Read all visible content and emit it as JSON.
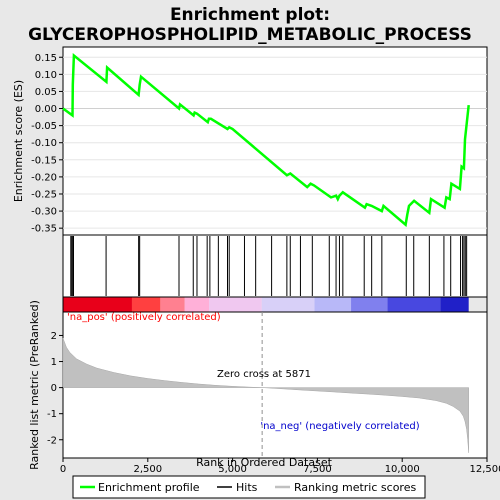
{
  "chart_data": {
    "type": "line",
    "title_line1": "Enrichment plot:",
    "title_line2": "GLYCEROPHOSPHOLIPID_METABOLIC_PROCESS",
    "es_panel": {
      "ylabel": "Enrichment score (ES)",
      "ylim": [
        -0.37,
        0.18
      ],
      "yticks": [
        0.15,
        0.1,
        0.05,
        0.0,
        -0.05,
        -0.1,
        -0.15,
        -0.2,
        -0.25,
        -0.3,
        -0.35
      ],
      "ytick_labels": [
        "0.15",
        "0.10",
        "0.05",
        "0.00",
        "-0.05",
        "-0.10",
        "-0.15",
        "-0.20",
        "-0.25",
        "-0.30",
        "-0.35"
      ],
      "series_name": "Enrichment profile",
      "color": "#00ff00",
      "x": [
        0,
        280,
        290,
        320,
        1280,
        1300,
        2230,
        2260,
        2300,
        3420,
        3450,
        3850,
        3880,
        3950,
        4270,
        4300,
        4360,
        4850,
        4900,
        5000,
        6600,
        6700,
        7200,
        7300,
        7400,
        7900,
        8050,
        8100,
        8150,
        8250,
        8900,
        8950,
        9100,
        9400,
        9450,
        10100,
        10150,
        10200,
        10350,
        10800,
        10850,
        11250,
        11300,
        11400,
        11450,
        11700,
        11750,
        11820,
        11850,
        11960
      ],
      "y": [
        0.0,
        -0.02,
        0.07,
        0.155,
        0.078,
        0.12,
        0.04,
        0.07,
        0.093,
        0.0,
        0.012,
        -0.02,
        -0.012,
        -0.015,
        -0.04,
        -0.03,
        -0.03,
        -0.06,
        -0.055,
        -0.06,
        -0.195,
        -0.19,
        -0.23,
        -0.22,
        -0.225,
        -0.26,
        -0.255,
        -0.265,
        -0.255,
        -0.245,
        -0.29,
        -0.28,
        -0.285,
        -0.3,
        -0.285,
        -0.34,
        -0.31,
        -0.285,
        -0.27,
        -0.305,
        -0.265,
        -0.29,
        -0.26,
        -0.265,
        -0.22,
        -0.235,
        -0.17,
        -0.175,
        -0.09,
        0.01
      ]
    },
    "hits": [
      230,
      260,
      290,
      310,
      1270,
      2230,
      2260,
      3420,
      3840,
      3950,
      4250,
      4330,
      4580,
      4850,
      4900,
      5350,
      5680,
      6150,
      6600,
      6700,
      7000,
      7350,
      7850,
      8050,
      8150,
      8250,
      8880,
      9100,
      9400,
      10120,
      10340,
      10800,
      11230,
      11430,
      11720,
      11780,
      11820,
      11860,
      11900
    ],
    "rank_panel": {
      "ylabel": "Ranked list metric (PreRanked)",
      "ylim": [
        -2.7,
        2.9
      ],
      "yticks": [
        2,
        1,
        0,
        -1,
        -2
      ],
      "ytick_labels": [
        "2",
        "1",
        "0",
        "-1",
        "-2"
      ],
      "series_name": "Ranking metric scores",
      "color": "#c0c0c0",
      "x": [
        0,
        100,
        200,
        400,
        700,
        1000,
        1500,
        2000,
        2500,
        3000,
        3500,
        4000,
        4500,
        5000,
        5500,
        5871,
        6500,
        7000,
        7500,
        8000,
        8500,
        9000,
        9500,
        10000,
        10500,
        11000,
        11300,
        11500,
        11700,
        11800,
        11850,
        11900,
        11930,
        11960
      ],
      "y": [
        1.9,
        1.55,
        1.35,
        1.1,
        0.9,
        0.75,
        0.58,
        0.45,
        0.35,
        0.27,
        0.2,
        0.14,
        0.09,
        0.05,
        0.02,
        0.0,
        -0.05,
        -0.09,
        -0.13,
        -0.17,
        -0.21,
        -0.25,
        -0.29,
        -0.34,
        -0.4,
        -0.5,
        -0.6,
        -0.72,
        -0.9,
        -1.1,
        -1.3,
        -1.6,
        -2.0,
        -2.5
      ]
    },
    "xlabel": "Rank in Ordered Dataset",
    "xlim": [
      0,
      12500
    ],
    "xticks": [
      0,
      2500,
      5000,
      7500,
      10000,
      12500
    ],
    "xtick_labels": [
      "0",
      "2,500",
      "5,000",
      "7,500",
      "10,000",
      "12,500"
    ],
    "zero_cross_x": 5871,
    "dataset_size": 11960,
    "annotations": {
      "pos_label": "'na_pos' (positively correlated)",
      "neg_label": "'na_neg' (negatively correlated)",
      "zero_cross_label": "Zero cross at 5871"
    },
    "legend": {
      "placement": "bottom",
      "items": [
        {
          "label": "Enrichment profile",
          "color": "#00ff00"
        },
        {
          "label": "Hits",
          "color": "#000000"
        },
        {
          "label": "Ranking metric scores",
          "color": "#c0c0c0"
        }
      ]
    },
    "colors": {
      "background": "#e8e8e8",
      "plot_bg": "#ffffff",
      "pos_text": "#ff0000",
      "neg_text": "#0000cc",
      "gradient": [
        "#e8001a",
        "#ff4040",
        "#ff8090",
        "#ffb0d8",
        "#f0c8f0",
        "#d8d0f8",
        "#b8b8f8",
        "#8080ee",
        "#4848e0",
        "#2020c8"
      ]
    }
  }
}
